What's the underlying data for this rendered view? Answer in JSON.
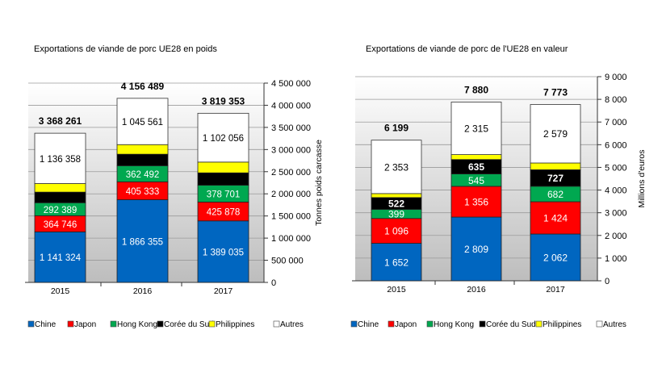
{
  "chart_data": [
    {
      "type": "bar",
      "stacked": true,
      "title": "Exportations de viande de porc UE28 en poids",
      "ylabel": "Tonnes poids carcasse",
      "ylim": [
        0,
        4500000
      ],
      "yticks": [
        "0",
        "500 000",
        "1 000 000",
        "1 500 000",
        "2 000 000",
        "2 500 000",
        "3 000 000",
        "3 500 000",
        "4 000 000",
        "4 500 000"
      ],
      "grid": true,
      "legend": "bottom",
      "categories": [
        "2015",
        "2016",
        "2017"
      ],
      "totals": [
        "3 368 261",
        "4 156 489",
        "3 819 353"
      ],
      "series": [
        {
          "name": "Chine",
          "color": "#0066C0",
          "values": [
            1141324,
            1866355,
            1389035
          ],
          "labels": [
            "1 141 324",
            "1 866 355",
            "1 389 035"
          ]
        },
        {
          "name": "Japon",
          "color": "#FF0000",
          "values": [
            364746,
            405333,
            425878
          ],
          "labels": [
            "364 746",
            "405 333",
            "425 878"
          ]
        },
        {
          "name": "Hong Kong",
          "color": "#00A850",
          "values": [
            292389,
            362492,
            378701
          ],
          "labels": [
            "292 389",
            "362 492",
            "378 701"
          ]
        },
        {
          "name": "Corée du Sud",
          "color": "#000000",
          "values": [
            240000,
            260000,
            280000
          ],
          "labels": [
            null,
            null,
            null
          ]
        },
        {
          "name": "Philippines",
          "color": "#FFFF00",
          "values": [
            193444,
            216748,
            243683
          ],
          "labels": [
            null,
            null,
            null
          ]
        },
        {
          "name": "Autres",
          "color": "#FFFFFF",
          "values": [
            1136358,
            1045561,
            1102056
          ],
          "labels": [
            "1 136 358",
            "1 045 561",
            "1 102 056"
          ]
        }
      ]
    },
    {
      "type": "bar",
      "stacked": true,
      "title": "Exportations de viande de porc de l'UE28 en valeur",
      "ylabel": "Millions d'euros",
      "ylim": [
        0,
        9000
      ],
      "yticks": [
        "0",
        "1 000",
        "2 000",
        "3 000",
        "4 000",
        "5 000",
        "6 000",
        "7 000",
        "8 000",
        "9 000"
      ],
      "grid": true,
      "legend": "bottom",
      "categories": [
        "2015",
        "2016",
        "2017"
      ],
      "totals": [
        "6 199",
        "7 880",
        "7 773"
      ],
      "series": [
        {
          "name": "Chine",
          "color": "#0066C0",
          "values": [
            1652,
            2809,
            2062
          ],
          "labels": [
            "1 652",
            "2 809",
            "2 062"
          ]
        },
        {
          "name": "Japon",
          "color": "#FF0000",
          "values": [
            1096,
            1356,
            1424
          ],
          "labels": [
            "1 096",
            "1 356",
            "1 424"
          ]
        },
        {
          "name": "Hong Kong",
          "color": "#00A850",
          "values": [
            399,
            545,
            682
          ],
          "labels": [
            "399",
            "545",
            "682"
          ]
        },
        {
          "name": "Corée du Sud",
          "color": "#000000",
          "values": [
            522,
            635,
            727
          ],
          "labels": [
            "522",
            "635",
            "727"
          ]
        },
        {
          "name": "Philippines",
          "color": "#FFFF00",
          "values": [
            177,
            220,
            299
          ],
          "labels": [
            null,
            null,
            null
          ]
        },
        {
          "name": "Autres",
          "color": "#FFFFFF",
          "values": [
            2353,
            2315,
            2579
          ],
          "labels": [
            "2 353",
            "2 315",
            "2 579"
          ]
        }
      ]
    }
  ]
}
